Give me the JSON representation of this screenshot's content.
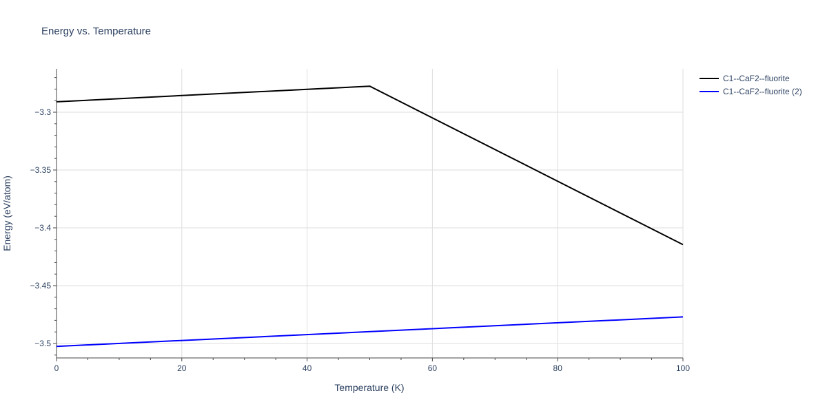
{
  "chart_data": {
    "type": "line",
    "title": "Energy vs. Temperature",
    "xlabel": "Temperature (K)",
    "ylabel": "Energy (eV/atom)",
    "xlim": [
      0,
      100
    ],
    "ylim": [
      -3.5125,
      -3.2625
    ],
    "xticks": [
      0,
      20,
      40,
      60,
      80,
      100
    ],
    "xtick_labels": [
      "0",
      "20",
      "40",
      "60",
      "80",
      "100"
    ],
    "yticks": [
      -3.5,
      -3.45,
      -3.4,
      -3.35,
      -3.3
    ],
    "ytick_labels": [
      "−3.5",
      "−3.45",
      "−3.4",
      "−3.35",
      "−3.3"
    ],
    "x_minor_step": 5,
    "y_minor_step": 0.01,
    "grid": true,
    "legend_position": "top-right",
    "series": [
      {
        "name": "C1--CaF2--fluorite",
        "color": "#000000",
        "x": [
          0,
          50,
          100
        ],
        "y": [
          -3.291,
          -3.2775,
          -3.4145
        ]
      },
      {
        "name": "C1--CaF2--fluorite (2)",
        "color": "#0000ff",
        "x": [
          0,
          100
        ],
        "y": [
          -3.5025,
          -3.477
        ]
      }
    ]
  }
}
